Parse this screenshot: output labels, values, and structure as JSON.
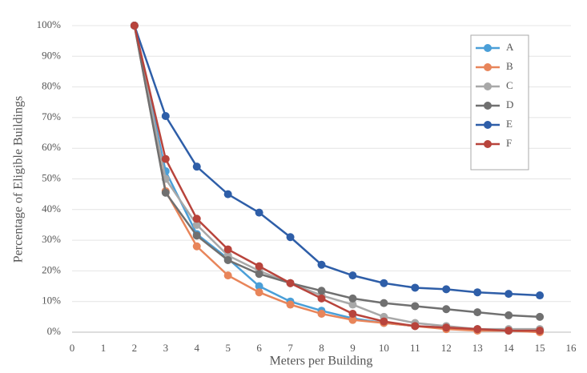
{
  "chart_data": {
    "type": "line",
    "x_label": "Meters per Building",
    "y_label": "Percentage of Eligible Buildings",
    "x": [
      2,
      3,
      4,
      5,
      6,
      7,
      8,
      9,
      10,
      11,
      12,
      13,
      14,
      15
    ],
    "series": [
      {
        "name": "A",
        "color": "#4a9fd8",
        "values": [
          100,
          52.5,
          32,
          24,
          15,
          10,
          7,
          4.5,
          3,
          2,
          1.5,
          1,
          0.5,
          0.5
        ]
      },
      {
        "name": "B",
        "color": "#e8855a",
        "values": [
          100,
          46,
          28,
          18.5,
          13,
          9,
          6,
          4,
          3,
          2,
          1,
          0.5,
          0.5,
          0
        ]
      },
      {
        "name": "C",
        "color": "#a8a8a8",
        "values": [
          100,
          50,
          35,
          25,
          20,
          16,
          12,
          9,
          5,
          3,
          2,
          1,
          1,
          1
        ]
      },
      {
        "name": "D",
        "color": "#707070",
        "values": [
          100,
          45.5,
          31.5,
          23.5,
          19,
          16,
          13.5,
          11,
          9.5,
          8.5,
          7.5,
          6.5,
          5.5,
          5
        ]
      },
      {
        "name": "E",
        "color": "#2e5ea8",
        "values": [
          100,
          70.5,
          54,
          45,
          39,
          31,
          22,
          18.5,
          16,
          14.5,
          14,
          13,
          12.5,
          12
        ]
      },
      {
        "name": "F",
        "color": "#b8443c",
        "values": [
          100,
          56.5,
          37,
          27,
          21.5,
          16,
          11,
          6,
          3.5,
          2,
          1.5,
          1,
          0.5,
          0.5
        ]
      }
    ],
    "xlim": [
      0,
      16
    ],
    "xticks": [
      0,
      1,
      2,
      3,
      4,
      5,
      6,
      7,
      8,
      9,
      10,
      11,
      12,
      13,
      14,
      15,
      16
    ],
    "ylim": [
      0,
      100
    ],
    "yticks": [
      {
        "value": 0,
        "label": "0%"
      },
      {
        "value": 10,
        "label": "10%"
      },
      {
        "value": 20,
        "label": "20%"
      },
      {
        "value": 30,
        "label": "30%"
      },
      {
        "value": 40,
        "label": "40%"
      },
      {
        "value": 50,
        "label": "50%"
      },
      {
        "value": 60,
        "label": "60%"
      },
      {
        "value": 70,
        "label": "70%"
      },
      {
        "value": 80,
        "label": "80%"
      },
      {
        "value": 90,
        "label": "90%"
      },
      {
        "value": 100,
        "label": "100%"
      }
    ],
    "grid": true,
    "legend": "top-right"
  }
}
